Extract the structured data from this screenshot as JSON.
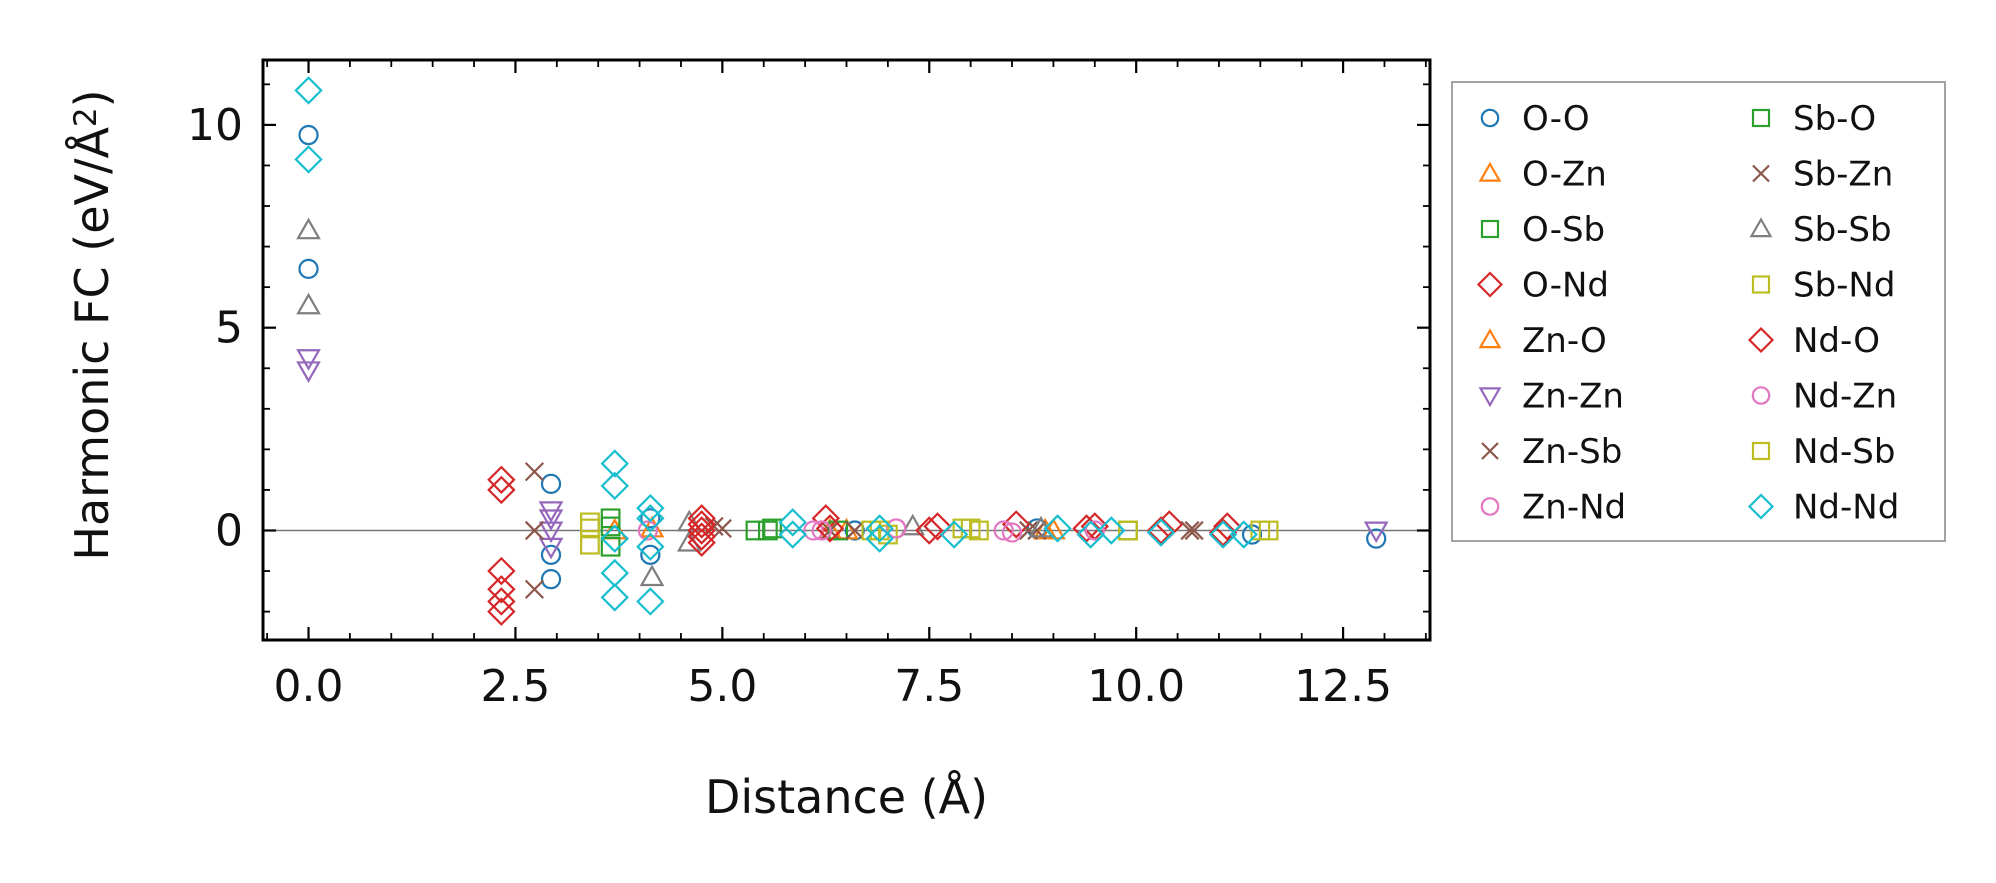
{
  "chart_data": {
    "type": "scatter",
    "title": "",
    "xlabel": "Distance (Å)",
    "ylabel": "Harmonic FC (eV/Å²)",
    "ylabel_parts": {
      "main": "Harmonic FC (eV/Å",
      "sup": "2",
      "close": ")"
    },
    "xlim": [
      -0.55,
      13.55
    ],
    "ylim": [
      -2.7,
      11.6
    ],
    "xticks": [
      0.0,
      2.5,
      5.0,
      7.5,
      10.0,
      12.5
    ],
    "xtick_labels": [
      "0.0",
      "2.5",
      "5.0",
      "7.5",
      "10.0",
      "12.5"
    ],
    "yticks": [
      0,
      5,
      10
    ],
    "ytick_labels": [
      "0",
      "5",
      "10"
    ],
    "reference_line_y": 0,
    "legend_position": "right outside",
    "series": [
      {
        "name": "O-O",
        "marker": "circle",
        "color": "#1f77b4",
        "x": [
          0,
          0,
          2.93,
          2.93,
          2.93,
          4.13,
          4.13,
          6.6,
          8.8,
          11.4,
          12.9
        ],
        "y": [
          9.75,
          6.45,
          1.15,
          -0.6,
          -1.2,
          0.3,
          -0.6,
          0.0,
          0.05,
          -0.1,
          -0.2
        ]
      },
      {
        "name": "O-Zn",
        "marker": "triangle-up",
        "color": "#ff7f0e",
        "x": [
          3.7,
          6.3,
          9.0
        ],
        "y": [
          0.0,
          0.0,
          0.0
        ]
      },
      {
        "name": "O-Sb",
        "marker": "square",
        "color": "#2ca02c",
        "x": [
          3.65,
          5.4,
          9.9
        ],
        "y": [
          0.1,
          0.0,
          0.0
        ]
      },
      {
        "name": "O-Nd",
        "marker": "diamond",
        "color": "#d62728",
        "x": [
          2.33,
          2.33,
          2.33,
          2.33,
          2.33,
          2.33,
          6.25,
          7.6,
          8.55,
          9.5,
          10.4,
          11.1
        ],
        "y": [
          1.25,
          1.0,
          -1.0,
          -1.45,
          -1.75,
          -2.0,
          0.3,
          0.1,
          0.15,
          0.1,
          0.15,
          0.1
        ]
      },
      {
        "name": "Zn-O",
        "marker": "triangle-up",
        "color": "#ff7f0e",
        "x": [
          4.15,
          6.5,
          8.9
        ],
        "y": [
          0.05,
          0.0,
          0.0
        ]
      },
      {
        "name": "Zn-Zn",
        "marker": "triangle-down",
        "color": "#9467bd",
        "x": [
          0,
          0,
          2.93,
          2.93,
          2.93,
          2.93,
          12.9
        ],
        "y": [
          4.25,
          3.95,
          0.5,
          0.3,
          0.0,
          -0.4,
          0.0
        ]
      },
      {
        "name": "Zn-Sb",
        "marker": "x",
        "color": "#8c564b",
        "x": [
          2.73,
          2.73,
          2.73,
          4.9,
          6.3,
          8.7,
          10.65
        ],
        "y": [
          1.45,
          0.0,
          -1.45,
          0.1,
          0.0,
          0.0,
          0.0
        ]
      },
      {
        "name": "Zn-Nd",
        "marker": "circle",
        "color": "#e377c2",
        "x": [
          4.1,
          6.1,
          7.1,
          8.4
        ],
        "y": [
          0.0,
          0.0,
          0.05,
          0.0
        ]
      },
      {
        "name": "Sb-O",
        "marker": "square",
        "color": "#2ca02c",
        "x": [
          3.65,
          3.65,
          5.55,
          5.6,
          6.4
        ],
        "y": [
          0.3,
          -0.4,
          0.0,
          0.05,
          0.0
        ]
      },
      {
        "name": "Sb-Zn",
        "marker": "x",
        "color": "#8c564b",
        "x": [
          5.0,
          6.6,
          8.8,
          10.7
        ],
        "y": [
          0.05,
          0.0,
          0.0,
          0.0
        ]
      },
      {
        "name": "Sb-Sb",
        "marker": "triangle-up",
        "color": "#7f7f7f",
        "x": [
          0,
          0,
          4.15,
          4.6,
          4.6,
          7.3,
          8.85
        ],
        "y": [
          7.4,
          5.55,
          -1.15,
          0.2,
          -0.3,
          0.1,
          0.05
        ]
      },
      {
        "name": "Sb-Nd",
        "marker": "square",
        "color": "#bcbd22",
        "x": [
          3.4,
          3.4,
          6.8,
          7.0,
          8.0,
          8.1,
          9.9,
          11.6
        ],
        "y": [
          0.2,
          -0.35,
          0.0,
          -0.1,
          0.05,
          0.0,
          0.0,
          0.0
        ]
      },
      {
        "name": "Nd-O",
        "marker": "diamond",
        "color": "#d62728",
        "x": [
          4.75,
          4.75,
          4.75,
          4.75,
          4.75,
          6.3,
          7.5,
          9.4,
          10.3,
          11.05
        ],
        "y": [
          0.3,
          0.15,
          0.0,
          -0.15,
          -0.3,
          0.05,
          0.0,
          0.05,
          0.0,
          -0.05
        ]
      },
      {
        "name": "Nd-Zn",
        "marker": "circle",
        "color": "#e377c2",
        "x": [
          6.2,
          7.1,
          8.5,
          9.5
        ],
        "y": [
          0.0,
          0.05,
          -0.05,
          0.0
        ]
      },
      {
        "name": "Nd-Sb",
        "marker": "square",
        "color": "#bcbd22",
        "x": [
          3.4,
          6.9,
          7.9,
          9.9,
          11.5
        ],
        "y": [
          0.05,
          0.0,
          0.05,
          0.0,
          0.0
        ]
      },
      {
        "name": "Nd-Nd",
        "marker": "diamond",
        "color": "#17becf",
        "x": [
          0,
          0,
          3.7,
          3.7,
          3.7,
          3.7,
          3.7,
          4.13,
          4.13,
          4.13,
          4.13,
          5.85,
          5.85,
          6.9,
          6.9,
          7.8,
          9.05,
          9.45,
          9.7,
          10.3,
          11.05,
          11.3
        ],
        "y": [
          10.85,
          9.15,
          1.65,
          1.1,
          -0.2,
          -1.05,
          -1.65,
          0.55,
          0.3,
          -0.4,
          -1.75,
          0.2,
          -0.1,
          0.05,
          -0.2,
          -0.1,
          0.05,
          -0.1,
          0.0,
          -0.05,
          -0.1,
          -0.1
        ]
      }
    ]
  }
}
